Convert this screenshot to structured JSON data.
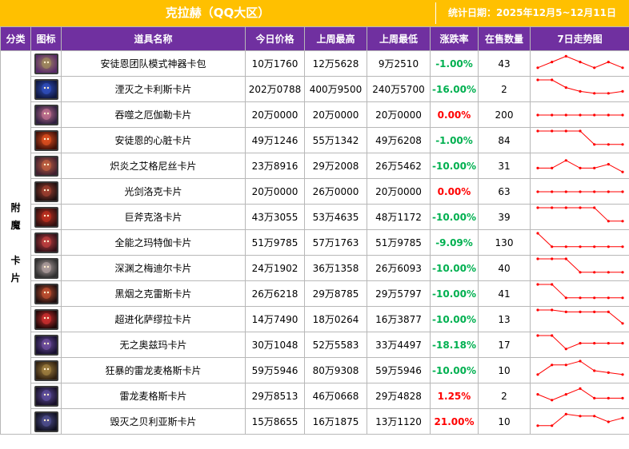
{
  "header": {
    "title": "克拉赫（QQ大区）",
    "stat_date": "统计日期：2025年12月5~12月11日"
  },
  "columns": [
    "分类",
    "图标",
    "道具名称",
    "今日价格",
    "上周最高",
    "上周最低",
    "涨跌率",
    "在售数量",
    "7日走势图"
  ],
  "category_chars": [
    "附",
    "魔",
    "",
    "卡",
    "片"
  ],
  "colors": {
    "title_bg": "#ffc000",
    "header_bg": "#7030a0",
    "rise": "#ff0000",
    "fall": "#00b050",
    "trend_line": "#ff0000"
  },
  "rows": [
    {
      "name": "安徒恩团队模式神器卡包",
      "today": "10万1760",
      "high": "12万5628",
      "low": "9万2510",
      "change": "-1.00%",
      "dir": "down",
      "qty": "43",
      "icon": "card-pack-icon",
      "c1": "#a08a5c",
      "c2": "#5a2a6a",
      "trend": [
        3,
        6,
        9,
        6,
        3,
        6,
        3
      ]
    },
    {
      "name": "湮灭之卡利斯卡片",
      "today": "202万0788",
      "high": "400万9500",
      "low": "240万5700",
      "change": "-16.00%",
      "dir": "down",
      "qty": "2",
      "icon": "monster-card-icon",
      "c1": "#3050c0",
      "c2": "#101840",
      "trend": [
        10,
        10,
        6,
        4,
        3,
        3,
        4
      ]
    },
    {
      "name": "吞噬之厄伽勒卡片",
      "today": "20万0000",
      "high": "20万0000",
      "low": "20万0000",
      "change": "0.00%",
      "dir": "flat",
      "qty": "200",
      "icon": "monster-card-icon",
      "c1": "#c07090",
      "c2": "#302040",
      "trend": [
        5,
        5,
        5,
        5,
        5,
        5,
        5
      ]
    },
    {
      "name": "安徒恩的心脏卡片",
      "today": "49万1246",
      "high": "55万1342",
      "low": "49万6208",
      "change": "-1.00%",
      "dir": "down",
      "qty": "84",
      "icon": "monster-card-icon",
      "c1": "#e05020",
      "c2": "#401008",
      "trend": [
        10,
        10,
        10,
        10,
        3,
        3,
        3
      ]
    },
    {
      "name": "炽炎之艾格尼丝卡片",
      "today": "23万8916",
      "high": "29万2008",
      "low": "26万5462",
      "change": "-10.00%",
      "dir": "down",
      "qty": "31",
      "icon": "monster-card-icon",
      "c1": "#c06040",
      "c2": "#402030",
      "trend": [
        4,
        4,
        8,
        4,
        4,
        6,
        2
      ]
    },
    {
      "name": "光剑洛克卡片",
      "today": "20万0000",
      "high": "26万0000",
      "low": "20万0000",
      "change": "0.00%",
      "dir": "flat",
      "qty": "63",
      "icon": "monster-card-icon",
      "c1": "#a04030",
      "c2": "#201010",
      "trend": [
        5,
        5,
        5,
        5,
        5,
        5,
        5
      ]
    },
    {
      "name": "巨斧克洛卡片",
      "today": "43万3055",
      "high": "53万4635",
      "low": "48万1172",
      "change": "-10.00%",
      "dir": "down",
      "qty": "39",
      "icon": "monster-card-icon",
      "c1": "#c03020",
      "c2": "#301010",
      "trend": [
        10,
        10,
        10,
        10,
        10,
        3,
        3
      ]
    },
    {
      "name": "全能之玛特伽卡片",
      "today": "51万9785",
      "high": "57万1763",
      "low": "51万9785",
      "change": "-9.09%",
      "dir": "down",
      "qty": "130",
      "icon": "monster-card-icon",
      "c1": "#c04040",
      "c2": "#301018",
      "trend": [
        10,
        3,
        3,
        3,
        3,
        3,
        3
      ]
    },
    {
      "name": "深渊之梅迪尔卡片",
      "today": "24万1902",
      "high": "36万1358",
      "low": "26万6093",
      "change": "-10.00%",
      "dir": "down",
      "qty": "40",
      "icon": "monster-card-icon",
      "c1": "#b0a0a0",
      "c2": "#303030",
      "trend": [
        10,
        10,
        10,
        3,
        3,
        3,
        3
      ]
    },
    {
      "name": "黑烟之克雷斯卡片",
      "today": "26万6218",
      "high": "29万8785",
      "low": "29万5797",
      "change": "-10.00%",
      "dir": "down",
      "qty": "41",
      "icon": "monster-card-icon",
      "c1": "#c05030",
      "c2": "#201010",
      "trend": [
        10,
        10,
        3,
        3,
        3,
        3,
        3
      ]
    },
    {
      "name": "超进化萨缪拉卡片",
      "today": "14万7490",
      "high": "18万0264",
      "low": "16万3877",
      "change": "-10.00%",
      "dir": "down",
      "qty": "13",
      "icon": "monster-card-icon",
      "c1": "#d03030",
      "c2": "#200808",
      "trend": [
        10,
        10,
        9,
        9,
        9,
        9,
        3
      ]
    },
    {
      "name": "无之奥兹玛卡片",
      "today": "30万1048",
      "high": "52万5583",
      "low": "33万4497",
      "change": "-18.18%",
      "dir": "down",
      "qty": "17",
      "icon": "monster-card-icon",
      "c1": "#7050a0",
      "c2": "#181030",
      "trend": [
        10,
        10,
        3,
        6,
        6,
        6,
        6
      ]
    },
    {
      "name": "狂暴的雷龙麦格斯卡片",
      "today": "59万5946",
      "high": "80万9308",
      "low": "59万5946",
      "change": "-10.00%",
      "dir": "down",
      "qty": "10",
      "icon": "monster-card-icon",
      "c1": "#a08040",
      "c2": "#302010",
      "trend": [
        3,
        8,
        8,
        10,
        5,
        4,
        3
      ]
    },
    {
      "name": "雷龙麦格斯卡片",
      "today": "29万8513",
      "high": "46万0668",
      "low": "29万4828",
      "change": "1.25%",
      "dir": "up",
      "qty": "2",
      "icon": "monster-card-icon",
      "c1": "#6050a0",
      "c2": "#181028",
      "trend": [
        6,
        3,
        6,
        9,
        4,
        4,
        4
      ]
    },
    {
      "name": "毁灭之贝利亚斯卡片",
      "today": "15万8655",
      "high": "16万1875",
      "low": "13万1120",
      "change": "21.00%",
      "dir": "up",
      "qty": "10",
      "icon": "monster-card-icon",
      "c1": "#505090",
      "c2": "#101020",
      "trend": [
        3,
        3,
        9,
        8,
        8,
        5,
        7
      ]
    }
  ]
}
